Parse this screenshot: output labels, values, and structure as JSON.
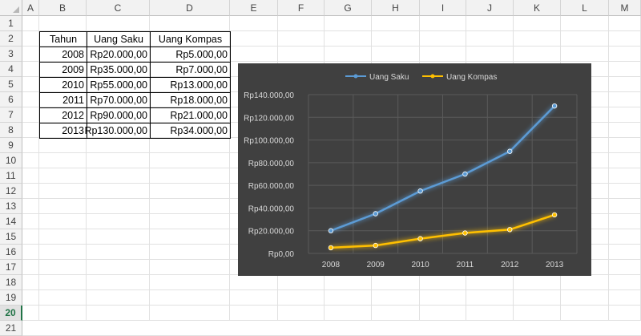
{
  "sheet": {
    "columns": [
      "A",
      "B",
      "C",
      "D",
      "E",
      "F",
      "G",
      "H",
      "I",
      "J",
      "K",
      "L",
      "M"
    ],
    "rows": [
      "1",
      "2",
      "3",
      "4",
      "5",
      "6",
      "7",
      "8",
      "9",
      "10",
      "11",
      "12",
      "13",
      "14",
      "15",
      "16",
      "17",
      "18",
      "19",
      "20",
      "21"
    ],
    "selected_row": "20"
  },
  "table": {
    "headers": [
      "Tahun",
      "Uang Saku",
      "Uang Kompas"
    ],
    "rows": [
      [
        "2008",
        "Rp20.000,00",
        "Rp5.000,00"
      ],
      [
        "2009",
        "Rp35.000,00",
        "Rp7.000,00"
      ],
      [
        "2010",
        "Rp55.000,00",
        "Rp13.000,00"
      ],
      [
        "2011",
        "Rp70.000,00",
        "Rp18.000,00"
      ],
      [
        "2012",
        "Rp90.000,00",
        "Rp21.000,00"
      ],
      [
        "2013",
        "Rp130.000,00",
        "Rp34.000,00"
      ]
    ]
  },
  "chart_data": {
    "type": "line",
    "categories": [
      "2008",
      "2009",
      "2010",
      "2011",
      "2012",
      "2013"
    ],
    "series": [
      {
        "name": "Uang Saku",
        "values": [
          20000,
          35000,
          55000,
          70000,
          90000,
          130000
        ],
        "color": "#5b9bd5"
      },
      {
        "name": "Uang Kompas",
        "values": [
          5000,
          7000,
          13000,
          18000,
          21000,
          34000
        ],
        "color": "#ffc000"
      }
    ],
    "ylim": [
      0,
      140000
    ],
    "yticks": [
      0,
      20000,
      40000,
      60000,
      80000,
      100000,
      120000,
      140000
    ],
    "ytick_labels": [
      "Rp0,00",
      "Rp20.000,00",
      "Rp40.000,00",
      "Rp60.000,00",
      "Rp80.000,00",
      "Rp100.000,00",
      "Rp120.000,00",
      "Rp140.000,00"
    ],
    "legend": "top",
    "grid": true,
    "background": "#404040"
  }
}
